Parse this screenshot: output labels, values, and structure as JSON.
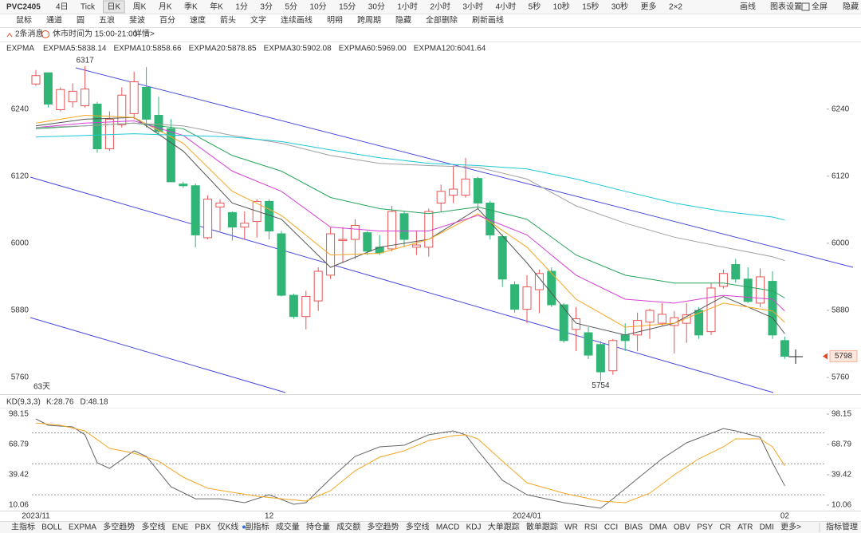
{
  "toolbar": {
    "symbol": "PVC2405",
    "periods": [
      {
        "label": "4日"
      },
      {
        "label": "Tick"
      },
      {
        "label": "日K",
        "active": true
      },
      {
        "label": "周K"
      },
      {
        "label": "月K"
      },
      {
        "label": "季K"
      },
      {
        "label": "年K"
      },
      {
        "label": "1分"
      },
      {
        "label": "3分"
      },
      {
        "label": "5分"
      },
      {
        "label": "10分"
      },
      {
        "label": "15分"
      },
      {
        "label": "30分"
      },
      {
        "label": "1小时"
      },
      {
        "label": "2小时"
      },
      {
        "label": "3小时"
      },
      {
        "label": "4小时"
      },
      {
        "label": "5秒"
      },
      {
        "label": "10秒"
      },
      {
        "label": "15秒"
      },
      {
        "label": "30秒"
      },
      {
        "label": "更多"
      },
      {
        "label": "2×2"
      }
    ],
    "actions": [
      {
        "label": "画线",
        "active": true
      },
      {
        "label": "图表设置"
      },
      {
        "label": "全屏"
      },
      {
        "label": "隐藏",
        "active": true
      }
    ]
  },
  "drawing_tools": [
    {
      "label": "鼠标",
      "active": true
    },
    {
      "label": "通道"
    },
    {
      "label": "圆"
    },
    {
      "label": "五浪"
    },
    {
      "label": "斐波"
    },
    {
      "label": "百分"
    },
    {
      "label": "速度"
    },
    {
      "label": "箭头"
    },
    {
      "label": "文字"
    },
    {
      "label": "连续画线",
      "active": true
    },
    {
      "label": "明朔"
    },
    {
      "label": "跨周期"
    },
    {
      "label": "隐藏"
    },
    {
      "label": "全部删除"
    },
    {
      "label": "刷新画线"
    }
  ],
  "notice": {
    "messages": "2条消息",
    "text": "休市时间为 15:00-21:00",
    "link": "详情>"
  },
  "chart_data": [
    {
      "type": "candlestick",
      "indicator": "EXPMA",
      "up_color": "#e85555",
      "down_color": "#30b576",
      "categories": [
        "2023/11",
        null,
        null,
        null,
        null,
        null,
        null,
        null,
        null,
        null,
        null,
        null,
        null,
        null,
        null,
        null,
        null,
        null,
        null,
        "12",
        null,
        null,
        null,
        null,
        null,
        null,
        null,
        null,
        null,
        null,
        null,
        null,
        null,
        null,
        null,
        null,
        null,
        null,
        null,
        null,
        "2024/01",
        null,
        null,
        null,
        null,
        null,
        null,
        null,
        null,
        null,
        null,
        null,
        null,
        null,
        null,
        null,
        null,
        null,
        null,
        null,
        null,
        "02"
      ],
      "open": [
        6285,
        6305,
        6239,
        6253,
        6246,
        6249,
        6169,
        6212,
        6232,
        6279,
        6229,
        6205,
        6106,
        6103,
        6010,
        6065,
        6055,
        6029,
        6039,
        6075,
        6017,
        5907,
        5869,
        5897,
        5943,
        6005,
        6007,
        6019,
        5993,
        5990,
        6053,
        5993,
        5993,
        6072,
        6086,
        6086,
        6116,
        6072,
        6012,
        5926,
        5882,
        5917,
        5950,
        5890,
        5846,
        5840,
        5819,
        5772,
        5836,
        5836,
        5859,
        5857,
        5853,
        5857,
        5880,
        5842,
        5923,
        5962,
        5936,
        5893,
        5932,
        5826
      ],
      "high": [
        6310,
        6305,
        6279,
        6286,
        6317,
        6253,
        6236,
        6279,
        6307,
        6315,
        6262,
        6222,
        6110,
        6107,
        6086,
        6079,
        6057,
        6057,
        6079,
        6079,
        6022,
        5910,
        5915,
        5957,
        6029,
        6029,
        6043,
        6022,
        6015,
        6067,
        6057,
        6022,
        6062,
        6105,
        6139,
        6153,
        6119,
        6076,
        6016,
        5932,
        5943,
        5953,
        5957,
        5893,
        5886,
        5850,
        5825,
        5829,
        5857,
        5876,
        5883,
        5893,
        5879,
        5893,
        5886,
        5929,
        5953,
        5972,
        5957,
        5955,
        5950,
        5833
      ],
      "low": [
        6282,
        6243,
        6236,
        6243,
        6243,
        6162,
        6165,
        6207,
        6222,
        6207,
        6193,
        6110,
        6099,
        5993,
        6007,
        6022,
        6005,
        6007,
        6010,
        6007,
        5905,
        5865,
        5846,
        5879,
        5936,
        5965,
        5972,
        5979,
        5979,
        5986,
        5993,
        5979,
        5976,
        6057,
        6072,
        6082,
        6062,
        6007,
        5922,
        5876,
        5857,
        5875,
        5886,
        5822,
        5807,
        5793,
        5754,
        5765,
        5807,
        5807,
        5829,
        5853,
        5803,
        5822,
        5829,
        5836,
        5919,
        5929,
        5893,
        5886,
        5829,
        5793
      ],
      "close": [
        6300,
        6249,
        6275,
        6272,
        6276,
        6169,
        6222,
        6265,
        6289,
        6222,
        6200,
        6110,
        6103,
        6015,
        6079,
        6072,
        6029,
        6036,
        6075,
        6022,
        5907,
        5869,
        5905,
        5950,
        6017,
        6007,
        6032,
        5986,
        5983,
        6057,
        6007,
        5997,
        6057,
        6093,
        6097,
        6115,
        6072,
        6015,
        5936,
        5882,
        5922,
        5946,
        5890,
        5826,
        5865,
        5800,
        5770,
        5826,
        5826,
        5862,
        5880,
        5873,
        5867,
        5872,
        5836,
        5920,
        5946,
        5936,
        5896,
        5940,
        5836,
        5798
      ],
      "series": [
        {
          "name": "EXPMA5:5838.14",
          "color": "#555555",
          "x": [
            0,
            4,
            8,
            12,
            16,
            20,
            24,
            28,
            32,
            36,
            40,
            44,
            48,
            52,
            56,
            60,
            61
          ],
          "values": [
            6210,
            6222,
            6225,
            6165,
            6072,
            6043,
            5957,
            5993,
            6007,
            6062,
            5965,
            5857,
            5836,
            5857,
            5905,
            5867,
            5838.14
          ]
        },
        {
          "name": "EXPMA10:5858.66",
          "color": "#f5a623",
          "x": [
            0,
            4,
            8,
            12,
            16,
            20,
            24,
            28,
            32,
            36,
            40,
            44,
            48,
            52,
            56,
            60,
            61
          ],
          "values": [
            6215,
            6229,
            6225,
            6179,
            6093,
            6050,
            5979,
            5982,
            6007,
            6053,
            5993,
            5900,
            5850,
            5857,
            5893,
            5879,
            5858.66
          ]
        },
        {
          "name": "EXPMA20:5878.85",
          "color": "#d63fd6",
          "x": [
            0,
            4,
            8,
            12,
            16,
            20,
            24,
            28,
            32,
            36,
            40,
            44,
            48,
            52,
            56,
            60,
            61
          ],
          "values": [
            6207,
            6215,
            6219,
            6193,
            6129,
            6093,
            6029,
            6022,
            6022,
            6050,
            6015,
            5943,
            5900,
            5893,
            5907,
            5900,
            5878.85
          ]
        },
        {
          "name": "EXPMA30:5902.08",
          "color": "#27a35a",
          "x": [
            0,
            4,
            8,
            12,
            16,
            20,
            24,
            28,
            32,
            36,
            40,
            44,
            48,
            52,
            56,
            60,
            61
          ],
          "values": [
            6205,
            6210,
            6215,
            6205,
            6157,
            6129,
            6082,
            6062,
            6053,
            6065,
            6043,
            5979,
            5943,
            5929,
            5929,
            5915,
            5902.08
          ]
        },
        {
          "name": "EXPMA60:5969.00",
          "color": "#a0a0a0",
          "x": [
            0,
            4,
            8,
            12,
            16,
            20,
            24,
            28,
            32,
            36,
            40,
            44,
            48,
            52,
            56,
            60,
            61
          ],
          "values": [
            6207,
            6210,
            6215,
            6210,
            6193,
            6179,
            6157,
            6143,
            6139,
            6136,
            6115,
            6067,
            6036,
            6011,
            5993,
            5976,
            5969
          ]
        },
        {
          "name": "EXPMA120:6041.64",
          "color": "#1ec8d6",
          "x": [
            0,
            4,
            8,
            12,
            16,
            20,
            24,
            28,
            32,
            36,
            40,
            44,
            48,
            52,
            56,
            60,
            61
          ],
          "values": [
            6190,
            6193,
            6196,
            6193,
            6190,
            6182,
            6167,
            6153,
            6143,
            6139,
            6133,
            6115,
            6093,
            6072,
            6057,
            6047,
            6041.64
          ]
        }
      ],
      "ylim": [
        5733,
        6361
      ],
      "yticks": [
        5760,
        5880,
        6000,
        6120,
        6240
      ],
      "max_price": 6317,
      "min_price": 5754,
      "span_label": "63天",
      "last_price": 5798
    },
    {
      "type": "line",
      "title": "KD(9,3,3)",
      "series": [
        {
          "name": "K:28.76",
          "color": "#666666",
          "x": [
            0,
            1,
            3,
            4,
            5,
            6,
            8,
            9,
            11,
            13,
            15,
            17,
            19,
            21,
            22,
            24,
            26,
            28,
            30,
            32,
            34,
            35,
            36,
            38,
            40,
            43,
            46,
            47,
            49,
            51,
            53,
            55,
            56,
            57,
            59,
            60,
            61
          ],
          "values": [
            93.5,
            87.3,
            85.8,
            78.1,
            51.0,
            45.6,
            62.6,
            57.2,
            27.8,
            16.2,
            16.2,
            12.4,
            20.1,
            10.8,
            12.4,
            35.6,
            57.2,
            66.5,
            68.0,
            78.1,
            81.9,
            78.1,
            62.6,
            34.0,
            20.1,
            12.4,
            7.0,
            16.2,
            35.6,
            54.9,
            70.3,
            79.6,
            84.2,
            81.9,
            75.7,
            51.0,
            28.76
          ]
        },
        {
          "name": "D:48.18",
          "color": "#f5a623",
          "x": [
            0,
            2,
            4,
            6,
            8,
            10,
            12,
            14,
            16,
            18,
            20,
            22,
            24,
            26,
            28,
            30,
            32,
            34,
            35,
            36,
            38,
            40,
            43,
            46,
            48,
            50,
            52,
            54,
            56,
            57,
            59,
            60,
            61
          ],
          "values": [
            89.6,
            87.3,
            81.9,
            64.9,
            60.3,
            52.6,
            37.1,
            26.3,
            22.4,
            18.6,
            16.2,
            13.9,
            24.0,
            43.3,
            56.4,
            62.6,
            72.6,
            77.3,
            78.1,
            74.2,
            52.6,
            31.7,
            21.6,
            13.9,
            12.4,
            21.6,
            39.4,
            54.9,
            66.5,
            74.2,
            74.2,
            66.5,
            48.18
          ]
        }
      ],
      "ylim": [
        10.06,
        98.15
      ],
      "yticks": [
        10.06,
        39.42,
        68.79,
        98.15
      ],
      "reference_lines": [
        20,
        50,
        80
      ]
    }
  ],
  "indicator_tabs": [
    {
      "label": "主指标"
    },
    {
      "label": "BOLL"
    },
    {
      "label": "EXPMA",
      "active": true
    },
    {
      "label": "多空趋势"
    },
    {
      "label": "多空线"
    },
    {
      "label": "ENE"
    },
    {
      "label": "PBX"
    },
    {
      "label": "仅K线"
    },
    {
      "label": "副指标"
    },
    {
      "label": "成交量"
    },
    {
      "label": "持仓量"
    },
    {
      "label": "成交额"
    },
    {
      "label": "多空趋势"
    },
    {
      "label": "多空线"
    },
    {
      "label": "MACD"
    },
    {
      "label": "KDJ"
    },
    {
      "label": "大单跟踪"
    },
    {
      "label": "散单跟踪"
    },
    {
      "label": "WR"
    },
    {
      "label": "RSI"
    },
    {
      "label": "CCI"
    },
    {
      "label": "BIAS"
    },
    {
      "label": "DMA"
    },
    {
      "label": "OBV"
    },
    {
      "label": "PSY"
    },
    {
      "label": "CR"
    },
    {
      "label": "ATR"
    },
    {
      "label": "DMI"
    },
    {
      "label": "更多>"
    }
  ],
  "manage": "指标管理"
}
